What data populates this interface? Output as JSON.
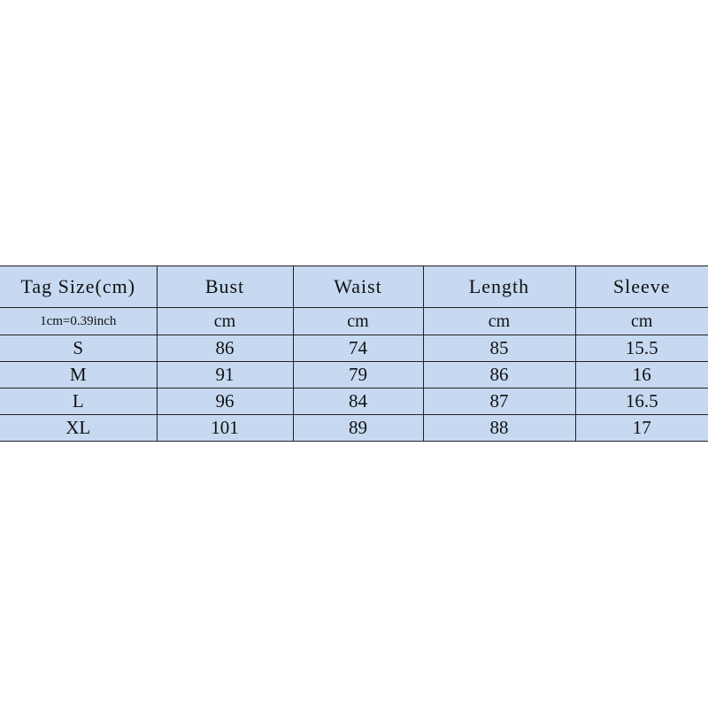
{
  "table": {
    "header": [
      "Tag Size(cm)",
      "Bust",
      "Waist",
      "Length",
      "Sleeve"
    ],
    "units": [
      "1cm=0.39inch",
      "cm",
      "cm",
      "cm",
      "cm"
    ],
    "rows": [
      [
        "S",
        "86",
        "74",
        "85",
        "15.5"
      ],
      [
        "M",
        "91",
        "79",
        "86",
        "16"
      ],
      [
        "L",
        "96",
        "84",
        "87",
        "16.5"
      ],
      [
        "XL",
        "101",
        "89",
        "88",
        "17"
      ]
    ]
  }
}
